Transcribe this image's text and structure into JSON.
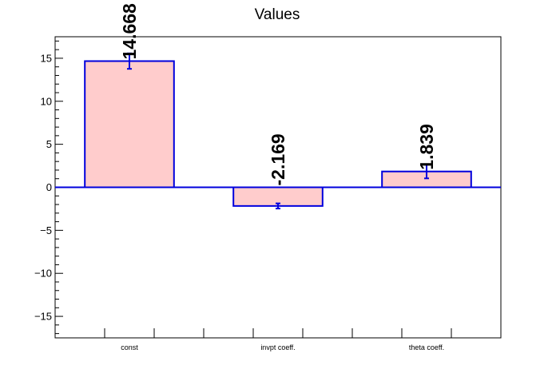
{
  "chart_data": {
    "type": "bar",
    "title": "Values",
    "xlabel": "",
    "ylabel": "",
    "categories": [
      "const",
      "invpt coeff.",
      "theta coeff."
    ],
    "values": [
      14.668,
      -2.169,
      1.839
    ],
    "value_labels": [
      "14.668",
      "-2.169",
      "1.839"
    ],
    "errors": [
      0.9,
      0.3,
      0.8
    ],
    "ylim": [
      -17.5,
      17.5
    ],
    "yticks": [
      -15,
      -10,
      -5,
      0,
      5,
      10,
      15
    ],
    "ytick_labels": [
      "−15",
      "−10",
      "−5",
      "0",
      "5",
      "10",
      "15"
    ],
    "grid": false,
    "legend": "none",
    "colors": {
      "bar_fill": "#ffcccc",
      "bar_edge": "#0000dd",
      "zero_line": "#0000dd",
      "error_bar": "#0000dd"
    }
  }
}
